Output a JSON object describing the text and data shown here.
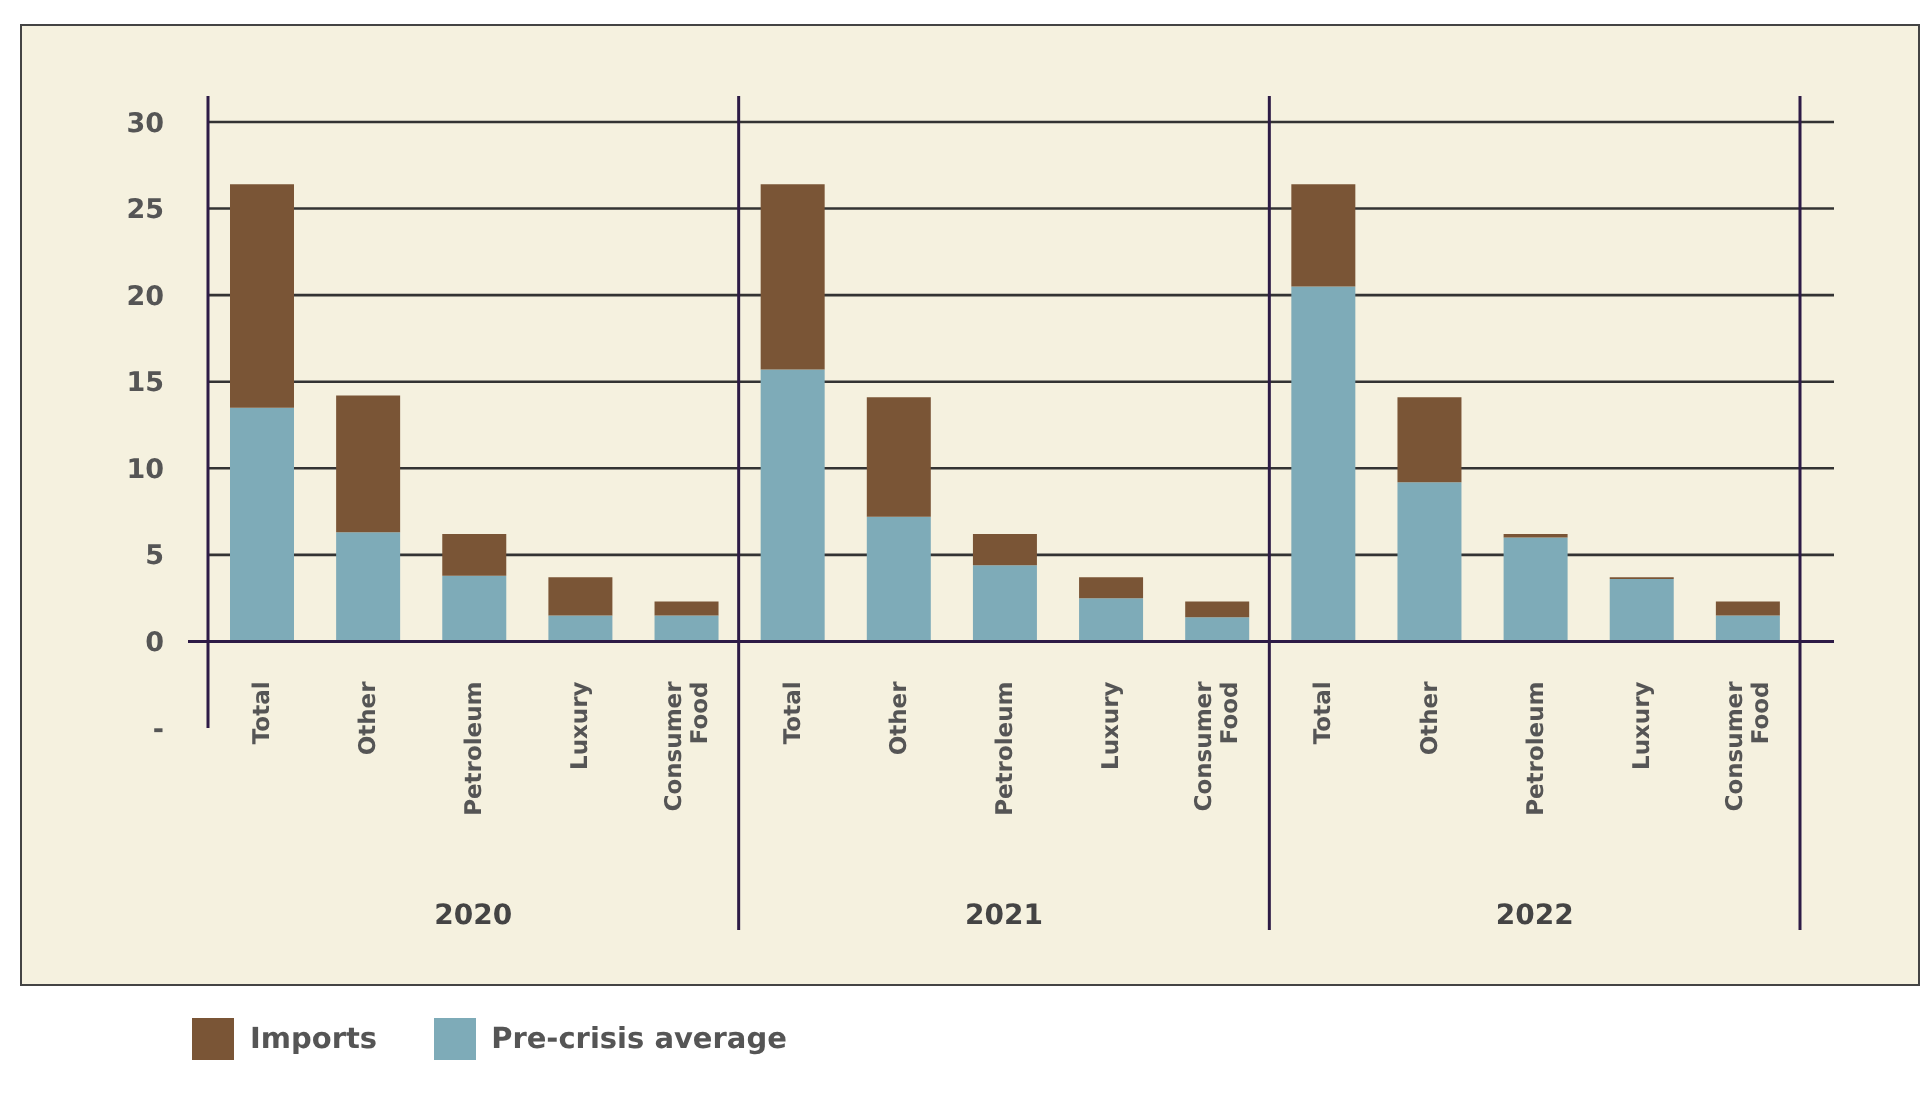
{
  "chart_data": {
    "type": "bar",
    "stacked": true,
    "categories": [
      "Total",
      "Other",
      "Petroleum",
      "Luxury",
      "Consumer Food",
      "Total",
      "Other",
      "Petroleum",
      "Luxury",
      "Consumer Food",
      "Total",
      "Other",
      "Petroleum",
      "Luxury",
      "Consumer Food"
    ],
    "series": [
      {
        "name": "Pre-crisis average",
        "color": "#7eabb8",
        "values": [
          13.5,
          6.3,
          3.8,
          1.5,
          1.5,
          15.7,
          7.2,
          4.4,
          2.5,
          1.4,
          20.5,
          9.2,
          6.0,
          3.6,
          1.5
        ]
      },
      {
        "name": "Imports",
        "color": "#7a5536",
        "values": [
          12.9,
          7.9,
          2.4,
          2.2,
          0.8,
          10.7,
          6.9,
          1.8,
          1.2,
          0.9,
          5.9,
          4.9,
          0.2,
          0.1,
          0.8
        ]
      }
    ],
    "ylim": [
      -5,
      30
    ],
    "yticks": [
      {
        "value": -5,
        "label": "-"
      },
      0,
      5,
      10,
      15,
      20,
      25,
      30
    ],
    "grid": "y",
    "legend": "bottom left",
    "annotations": [
      "2020",
      "2021",
      "2022"
    ]
  }
}
